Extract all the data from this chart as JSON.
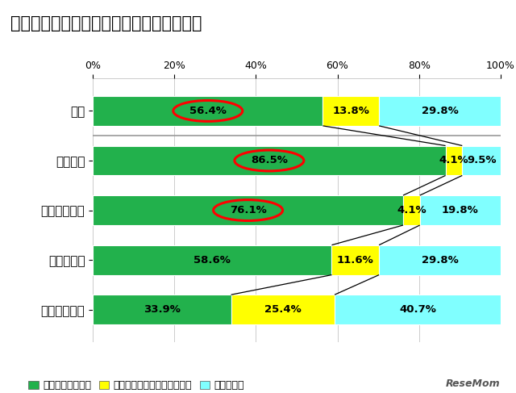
{
  "title": "２．家庭内での政治に関する話題との関連",
  "categories": [
    "全体",
    "よくある",
    "しばしばある",
    "たまにある",
    "ほとんどない"
  ],
  "green_values": [
    56.4,
    86.5,
    76.1,
    58.6,
    33.9
  ],
  "yellow_values": [
    13.8,
    4.1,
    4.1,
    11.6,
    25.4
  ],
  "cyan_values": [
    29.8,
    9.5,
    19.8,
    29.8,
    40.7
  ],
  "green_labels": [
    "56.4%",
    "86.5%",
    "76.1%",
    "58.6%",
    "33.9%"
  ],
  "yellow_labels": [
    "13.8%",
    "4.1%",
    "4.1%",
    "11.6%",
    "25.4%"
  ],
  "cyan_labels": [
    "29.8%",
    "9.5%",
    "19.8%",
    "29.8%",
    "40.7%"
  ],
  "circle_rows": [
    0,
    1,
    2
  ],
  "green_color": "#22b14c",
  "yellow_color": "#ffff00",
  "cyan_color": "#80ffff",
  "legend_labels": [
    "自分は選挙に行く",
    "自分は選挙にたぶん行かない",
    "わからない"
  ],
  "bg_color": "#ffffff",
  "bar_height": 0.6,
  "title_fontsize": 15,
  "label_fontsize": 9.5,
  "axis_label_fontsize": 9,
  "ytick_fontsize": 11
}
